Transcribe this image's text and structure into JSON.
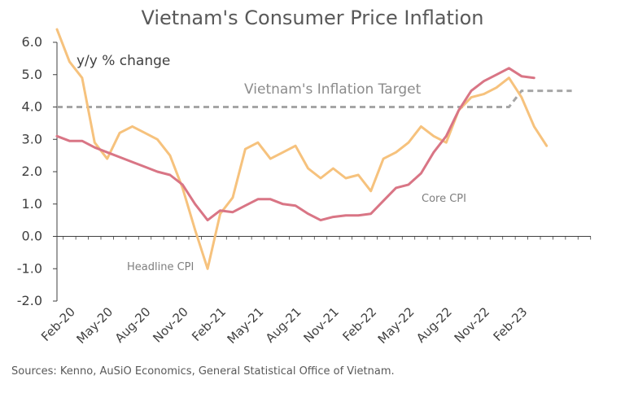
{
  "chart_data": {
    "type": "line",
    "title": "Vietnam's Consumer Price Inflation",
    "unit_label": "y/y % change",
    "source": "Sources: Kenno, AuSiO Economics, General Statistical Office of Vietnam.",
    "ylim": [
      -2.0,
      6.0
    ],
    "y_ticks": [
      "6.0",
      "5.0",
      "4.0",
      "3.0",
      "2.0",
      "1.0",
      "0.0",
      "-1.0",
      "-2.0"
    ],
    "grid": false,
    "x": [
      "Jan-20",
      "Feb-20",
      "Mar-20",
      "Apr-20",
      "May-20",
      "Jun-20",
      "Jul-20",
      "Aug-20",
      "Sep-20",
      "Oct-20",
      "Nov-20",
      "Dec-20",
      "Jan-21",
      "Feb-21",
      "Mar-21",
      "Apr-21",
      "May-21",
      "Jun-21",
      "Jul-21",
      "Aug-21",
      "Sep-21",
      "Oct-21",
      "Nov-21",
      "Dec-21",
      "Jan-22",
      "Feb-22",
      "Mar-22",
      "Apr-22",
      "May-22",
      "Jun-22",
      "Jul-22",
      "Aug-22",
      "Sep-22",
      "Oct-22",
      "Nov-22",
      "Dec-22",
      "Jan-23",
      "Feb-23",
      "Mar-23",
      "Apr-23",
      "May-23",
      "Jun-23"
    ],
    "x_tick_labels": [
      "Feb-20",
      "May-20",
      "Aug-20",
      "Nov-20",
      "Feb-21",
      "May-21",
      "Aug-21",
      "Nov-21",
      "Feb-22",
      "May-22",
      "Aug-22",
      "Nov-22",
      "Feb-23"
    ],
    "series": [
      {
        "name": "Headline CPI",
        "color": "#F6C27D",
        "values": [
          6.4,
          5.4,
          4.9,
          2.9,
          2.4,
          3.2,
          3.4,
          3.2,
          3.0,
          2.5,
          1.5,
          0.2,
          -1.0,
          0.7,
          1.2,
          2.7,
          2.9,
          2.4,
          2.6,
          2.8,
          2.1,
          1.8,
          2.1,
          1.8,
          1.9,
          1.4,
          2.4,
          2.6,
          2.9,
          3.4,
          3.1,
          2.9,
          3.9,
          4.3,
          4.4,
          4.6,
          4.9,
          4.3,
          3.4,
          2.8,
          null,
          null
        ]
      },
      {
        "name": "Core CPI",
        "color": "#D97585",
        "values": [
          3.1,
          2.95,
          2.95,
          2.75,
          2.6,
          2.45,
          2.3,
          2.15,
          2.0,
          1.9,
          1.6,
          1.0,
          0.5,
          0.8,
          0.75,
          0.95,
          1.15,
          1.15,
          1.0,
          0.95,
          0.7,
          0.5,
          0.6,
          0.65,
          0.65,
          0.7,
          1.1,
          1.5,
          1.6,
          1.95,
          2.6,
          3.1,
          3.9,
          4.5,
          4.8,
          5.0,
          5.2,
          4.95,
          4.9,
          null,
          null,
          null
        ]
      }
    ],
    "target": {
      "label": "Vietnam's Inflation Target",
      "color": "#A6A6A6",
      "values": [
        4.0,
        4.0,
        4.0,
        4.0,
        4.0,
        4.0,
        4.0,
        4.0,
        4.0,
        4.0,
        4.0,
        4.0,
        4.0,
        4.0,
        4.0,
        4.0,
        4.0,
        4.0,
        4.0,
        4.0,
        4.0,
        4.0,
        4.0,
        4.0,
        4.0,
        4.0,
        4.0,
        4.0,
        4.0,
        4.0,
        4.0,
        4.0,
        4.0,
        4.0,
        4.0,
        4.0,
        4.0,
        4.5,
        4.5,
        4.5,
        4.5,
        4.5
      ]
    },
    "annotations": [
      "Headline CPI",
      "Core CPI"
    ]
  }
}
